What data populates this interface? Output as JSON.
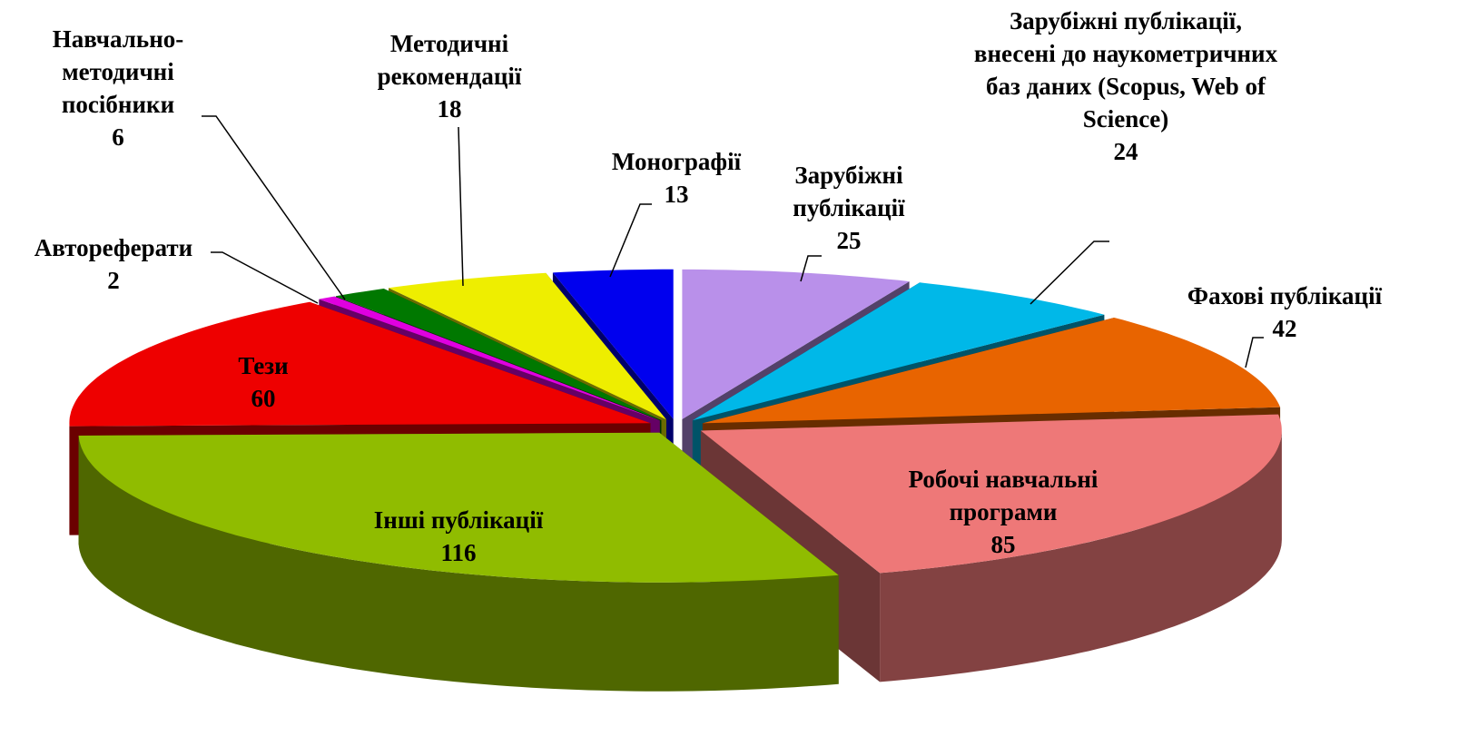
{
  "chart_data": {
    "type": "pie3d",
    "categories": [
      "Зарубіжні публікації",
      "Зарубіжні публікації, внесені до наукометричних баз даних (Scopus, Web of Science)",
      "Фахові публікації",
      "Робочі навчальні програми",
      "Інші публікації",
      "Тези",
      "Автореферати",
      "Навчально-методичні посібники",
      "Методичні рекомендації",
      "Монографії"
    ],
    "values": [
      25,
      24,
      42,
      85,
      116,
      60,
      2,
      6,
      18,
      13
    ],
    "colors": [
      "#b990ea",
      "#00b8e8",
      "#e86400",
      "#ee7878",
      "#90bc00",
      "#ee0000",
      "#e000e0",
      "#007800",
      "#eeee00",
      "#0000ee"
    ]
  }
}
